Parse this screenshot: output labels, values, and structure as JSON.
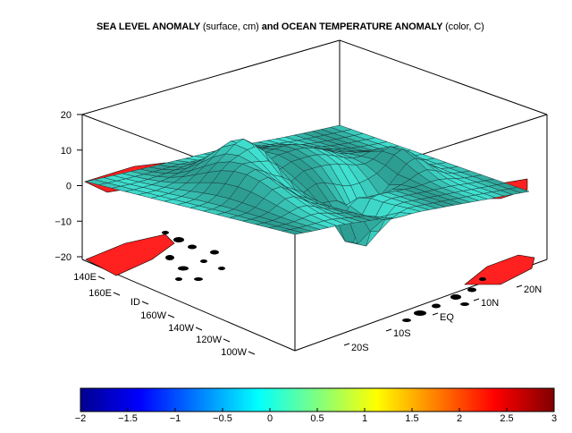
{
  "chart_data": {
    "type": "surface",
    "title_bold_1": "SEA LEVEL ANOMALY",
    "title_paren_1": "(surface, cm)",
    "title_bold_2": "and OCEAN TEMPERATURE ANOMALY",
    "title_paren_2": "(color, C)",
    "z_ticks": [
      "20",
      "10",
      "0",
      "−10",
      "−20"
    ],
    "z_values": [
      20,
      10,
      0,
      -10,
      -20
    ],
    "zlim": [
      -20,
      20
    ],
    "longitude_ticks": [
      "140E",
      "160E",
      "ID",
      "160W",
      "140W",
      "120W",
      "100W"
    ],
    "latitude_ticks": [
      "20S",
      "10S",
      "EQ",
      "10N",
      "20N"
    ],
    "colorbar": {
      "ticks": [
        "−2",
        "−1.5",
        "−1",
        "−0.5",
        "0",
        "0.5",
        "1",
        "1.5",
        "2",
        "2.5",
        "3"
      ],
      "values": [
        -2,
        -1.5,
        -1,
        -0.5,
        0,
        0.5,
        1,
        1.5,
        2,
        2.5,
        3
      ],
      "range": [
        -2,
        3
      ],
      "colormap": "jet"
    },
    "surface_color": "#40e0d0",
    "warm_color": "#ff2020",
    "cold_color": "#000000"
  }
}
